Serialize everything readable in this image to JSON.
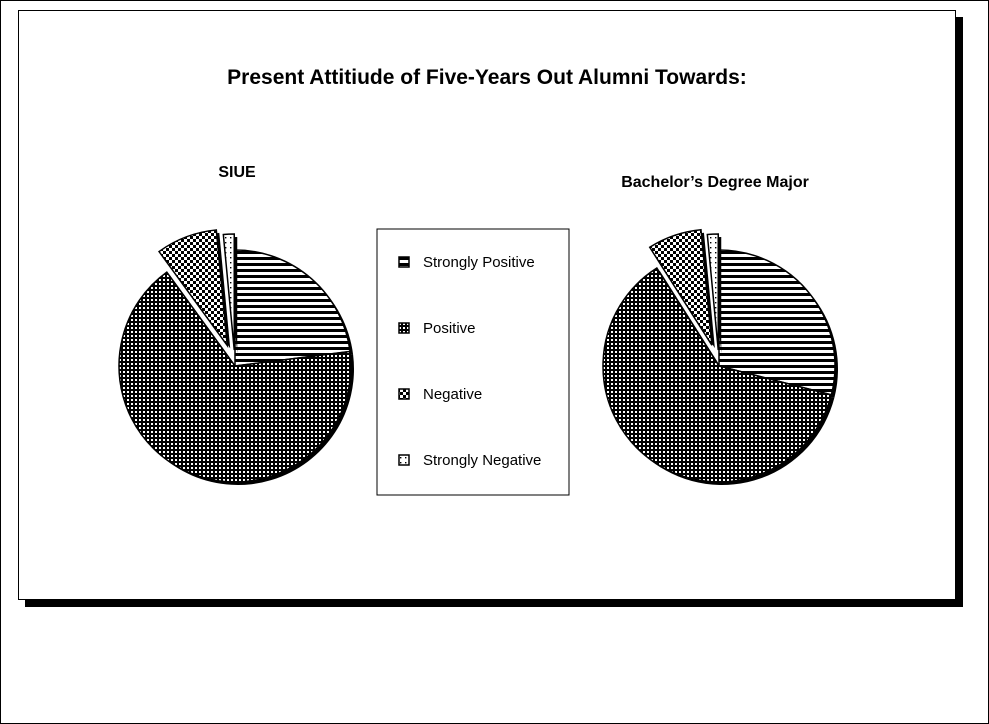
{
  "chart_data": {
    "type": "pie",
    "title": "Present Attitiude of Five-Years Out Alumni Towards:",
    "legend": {
      "placement": "center",
      "entries": [
        "Strongly Positive",
        "Positive",
        "Negative",
        "Strongly Negative"
      ]
    },
    "pies": [
      {
        "name": "SIUE",
        "categories": [
          "Strongly Positive",
          "Positive",
          "Negative",
          "Strongly Negative"
        ],
        "values": [
          23,
          67,
          8.5,
          1.5
        ]
      },
      {
        "name": "Bachelor’s Degree Major",
        "categories": [
          "Strongly Positive",
          "Positive",
          "Negative",
          "Strongly Negative"
        ],
        "values": [
          29,
          62,
          7.5,
          1.5
        ]
      }
    ]
  }
}
